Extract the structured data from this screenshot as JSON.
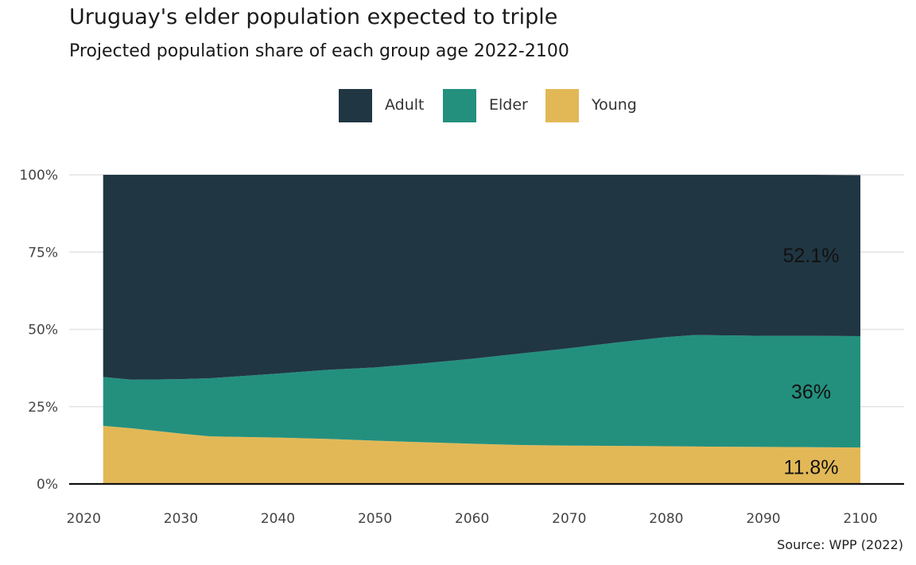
{
  "title": "Uruguay's elder population expected to triple",
  "subtitle": "Projected population share of each group age 2022-2100",
  "source": "Source: WPP (2022)",
  "legend": [
    {
      "label": "Adult",
      "color": "#203642"
    },
    {
      "label": "Elder",
      "color": "#23907e"
    },
    {
      "label": "Young",
      "color": "#e2b857"
    }
  ],
  "chart_data": {
    "type": "area",
    "stacked": true,
    "x": [
      2022,
      2025,
      2030,
      2033,
      2040,
      2045,
      2050,
      2055,
      2060,
      2065,
      2070,
      2075,
      2080,
      2083,
      2090,
      2095,
      2100
    ],
    "series": [
      {
        "name": "Young",
        "color": "#e2b857",
        "values": [
          18.8,
          18.0,
          16.3,
          15.4,
          15.0,
          14.6,
          14.0,
          13.5,
          13.0,
          12.6,
          12.4,
          12.3,
          12.2,
          12.1,
          12.0,
          11.9,
          11.8
        ]
      },
      {
        "name": "Elder",
        "color": "#23907e",
        "values": [
          15.8,
          15.7,
          17.6,
          18.8,
          20.7,
          22.3,
          23.7,
          25.5,
          27.5,
          29.6,
          31.5,
          33.5,
          35.3,
          36.1,
          35.9,
          36.0,
          36.0
        ]
      },
      {
        "name": "Adult",
        "color": "#203642",
        "values": [
          65.4,
          66.3,
          66.1,
          65.8,
          64.3,
          63.1,
          62.3,
          61.0,
          59.5,
          57.8,
          56.1,
          54.2,
          52.5,
          51.8,
          52.1,
          52.1,
          52.1
        ]
      }
    ],
    "end_labels": [
      {
        "series": "Adult",
        "text": "52.1%"
      },
      {
        "series": "Elder",
        "text": "36%"
      },
      {
        "series": "Young",
        "text": "11.8%"
      }
    ],
    "x_ticks": [
      "2020",
      "2030",
      "2040",
      "2050",
      "2060",
      "2070",
      "2080",
      "2090",
      "2100"
    ],
    "x_tick_values": [
      2020,
      2030,
      2040,
      2050,
      2060,
      2070,
      2080,
      2090,
      2100
    ],
    "y_ticks": [
      "0%",
      "25%",
      "50%",
      "75%",
      "100%"
    ],
    "y_tick_values": [
      0,
      25,
      50,
      75,
      100
    ],
    "xlim": [
      2018.5,
      2104.5
    ],
    "ylim": [
      0,
      100
    ],
    "grid": true,
    "legend_position": "top"
  }
}
